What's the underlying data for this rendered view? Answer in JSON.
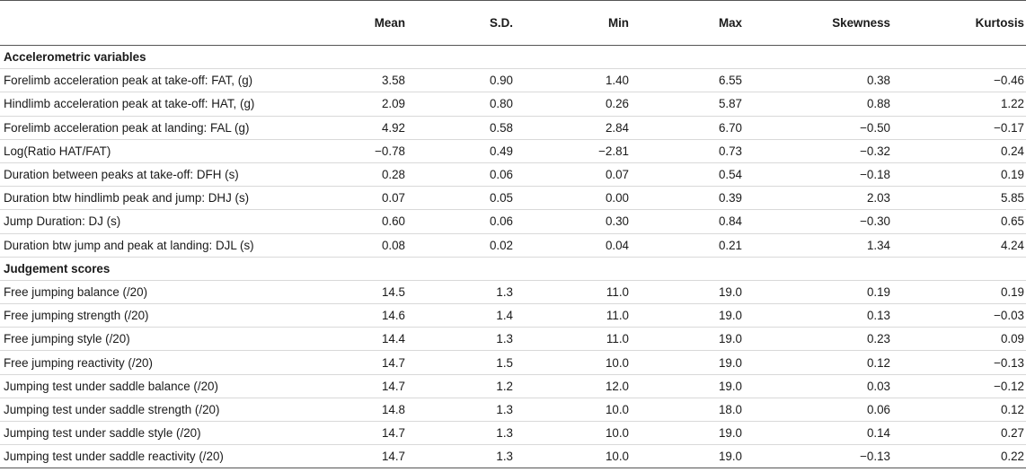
{
  "table": {
    "headers": [
      "",
      "Mean",
      "S.D.",
      "Min",
      "Max",
      "Skewness",
      "Kurtosis"
    ],
    "rows": [
      {
        "section": true,
        "label": "Accelerometric variables"
      },
      {
        "label": "Forelimb acceleration peak at take-off: FAT, (g)",
        "values": [
          "3.58",
          "0.90",
          "1.40",
          "6.55",
          "0.38",
          "−0.46"
        ]
      },
      {
        "label": "Hindlimb acceleration peak at take-off: HAT, (g)",
        "values": [
          "2.09",
          "0.80",
          "0.26",
          "5.87",
          "0.88",
          "1.22"
        ]
      },
      {
        "label": "Forelimb acceleration peak at landing: FAL (g)",
        "values": [
          "4.92",
          "0.58",
          "2.84",
          "6.70",
          "−0.50",
          "−0.17"
        ]
      },
      {
        "label": "Log(Ratio HAT/FAT)",
        "values": [
          "−0.78",
          "0.49",
          "−2.81",
          "0.73",
          "−0.32",
          "0.24"
        ]
      },
      {
        "label": "Duration between peaks at take-off: DFH (s)",
        "values": [
          "0.28",
          "0.06",
          "0.07",
          "0.54",
          "−0.18",
          "0.19"
        ]
      },
      {
        "label": "Duration btw hindlimb peak and jump: DHJ (s)",
        "values": [
          "0.07",
          "0.05",
          "0.00",
          "0.39",
          "2.03",
          "5.85"
        ]
      },
      {
        "label": "Jump Duration: DJ (s)",
        "values": [
          "0.60",
          "0.06",
          "0.30",
          "0.84",
          "−0.30",
          "0.65"
        ]
      },
      {
        "label": "Duration btw jump and peak at landing: DJL (s)",
        "values": [
          "0.08",
          "0.02",
          "0.04",
          "0.21",
          "1.34",
          "4.24"
        ]
      },
      {
        "section": true,
        "label": "Judgement scores"
      },
      {
        "label": "Free jumping balance (/20)",
        "values": [
          "14.5",
          "1.3",
          "11.0",
          "19.0",
          "0.19",
          "0.19"
        ]
      },
      {
        "label": "Free jumping strength (/20)",
        "values": [
          "14.6",
          "1.4",
          "11.0",
          "19.0",
          "0.13",
          "−0.03"
        ]
      },
      {
        "label": "Free jumping style (/20)",
        "values": [
          "14.4",
          "1.3",
          "11.0",
          "19.0",
          "0.23",
          "0.09"
        ]
      },
      {
        "label": "Free jumping reactivity (/20)",
        "values": [
          "14.7",
          "1.5",
          "10.0",
          "19.0",
          "0.12",
          "−0.13"
        ]
      },
      {
        "label": "Jumping test under saddle balance (/20)",
        "values": [
          "14.7",
          "1.2",
          "12.0",
          "19.0",
          "0.03",
          "−0.12"
        ]
      },
      {
        "label": "Jumping test under saddle strength (/20)",
        "values": [
          "14.8",
          "1.3",
          "10.0",
          "18.0",
          "0.06",
          "0.12"
        ]
      },
      {
        "label": "Jumping test under saddle style (/20)",
        "values": [
          "14.7",
          "1.3",
          "10.0",
          "19.0",
          "0.14",
          "0.27"
        ]
      },
      {
        "label": "Jumping test under saddle reactivity (/20)",
        "values": [
          "14.7",
          "1.3",
          "10.0",
          "19.0",
          "−0.13",
          "0.22"
        ]
      }
    ]
  }
}
